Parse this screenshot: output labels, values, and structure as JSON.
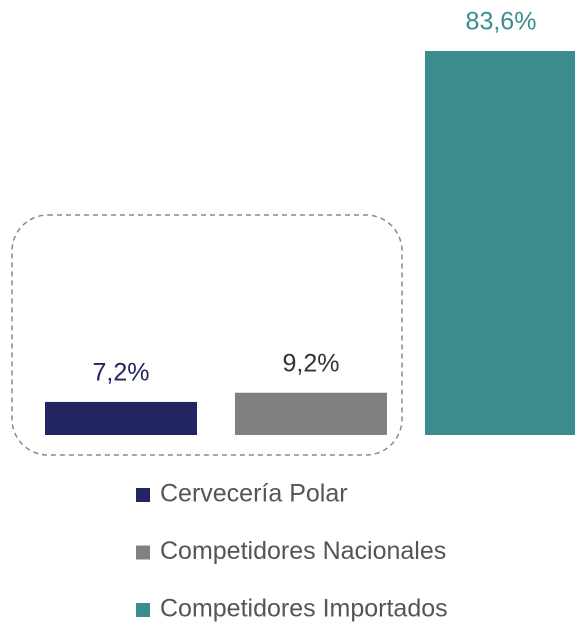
{
  "chart_data": {
    "type": "bar",
    "series": [
      {
        "name": "Cervecería Polar",
        "color": "#232462",
        "values": [
          7.2
        ],
        "value_labels": [
          "7,2%"
        ]
      },
      {
        "name": "Competidores Nacionales",
        "color": "#808080",
        "values": [
          9.2
        ],
        "value_labels": [
          "9,2%"
        ]
      },
      {
        "name": "Competidores Importados",
        "color": "#3a8c8f",
        "values": [
          83.6
        ],
        "value_labels": [
          "83,6%"
        ]
      }
    ]
  }
}
